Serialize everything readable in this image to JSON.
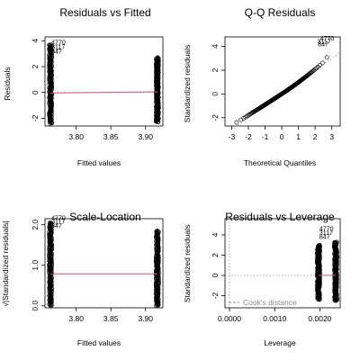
{
  "chart_data": [
    {
      "type": "scatter",
      "title": "Residuals vs Fitted",
      "xlabel": "Fitted values",
      "ylabel": "Residuals",
      "xlim": [
        3.755,
        3.925
      ],
      "ylim": [
        -2.6,
        4.3
      ],
      "xticks": [
        3.8,
        3.85,
        3.9
      ],
      "xtick_labels": [
        "3.80",
        "3.85",
        "3.90"
      ],
      "yticks": [
        -2,
        0,
        2,
        4
      ],
      "ytick_labels": [
        "-2",
        "0",
        "2",
        "4"
      ],
      "clusters": [
        {
          "x": 3.763,
          "y_min": -2.4,
          "y_max": 3.7
        },
        {
          "x": 3.917,
          "y_min": -2.3,
          "y_max": 2.7
        }
      ],
      "reference_line": {
        "type": "hline",
        "y": 0
      },
      "smooth_line": {
        "x": [
          3.763,
          3.917
        ],
        "y": [
          -0.05,
          0.05
        ],
        "color": "#df536b"
      },
      "point_labels": [
        {
          "text": "4770",
          "x": 3.763,
          "y": 3.7
        },
        {
          "text": "3117",
          "x": 3.763,
          "y": 3.35
        },
        {
          "text": "847",
          "x": 3.763,
          "y": 3.0
        }
      ]
    },
    {
      "type": "scatter",
      "title": "Q-Q Residuals",
      "xlabel": "Theoretical Quantiles",
      "ylabel": "Standardized residuals",
      "xlim": [
        -3.4,
        3.5
      ],
      "ylim": [
        -2.7,
        4.8
      ],
      "xticks": [
        -3,
        -2,
        -1,
        0,
        1,
        2,
        3
      ],
      "xtick_labels": [
        "-3",
        "-2",
        "-1",
        "0",
        "1",
        "2",
        "3"
      ],
      "yticks": [
        -2,
        0,
        2,
        4
      ],
      "ytick_labels": [
        "-2",
        "0",
        "2",
        "4"
      ],
      "qq_reference_line": {
        "intercept": 0,
        "slope": 1
      },
      "point_labels": [
        {
          "text": "4770",
          "x": 3.2,
          "y": 4.5
        },
        {
          "text": "3117",
          "x": 3.0,
          "y": 4.25
        },
        {
          "text": "847",
          "x": 2.85,
          "y": 4.0
        }
      ]
    },
    {
      "type": "scatter",
      "title": "Scale-Location",
      "xlabel": "Fitted values",
      "ylabel": "√|Standardized residuals|",
      "xlim": [
        3.755,
        3.925
      ],
      "ylim": [
        -0.05,
        2.15
      ],
      "xticks": [
        3.8,
        3.85,
        3.9
      ],
      "xtick_labels": [
        "3.80",
        "3.85",
        "3.90"
      ],
      "yticks": [
        0.0,
        1.0,
        2.0
      ],
      "ytick_labels": [
        "0.0",
        "1.0",
        "2.0"
      ],
      "clusters": [
        {
          "x": 3.763,
          "y_min": 0.0,
          "y_max": 2.05
        },
        {
          "x": 3.917,
          "y_min": 0.0,
          "y_max": 1.85
        }
      ],
      "smooth_line": {
        "x": [
          3.763,
          3.917
        ],
        "y": [
          0.79,
          0.79
        ],
        "color": "#df536b"
      },
      "point_labels": [
        {
          "text": "4770",
          "x": 3.763,
          "y": 2.12
        },
        {
          "text": "3117",
          "x": 3.763,
          "y": 2.03
        },
        {
          "text": "847",
          "x": 3.763,
          "y": 1.93
        }
      ]
    },
    {
      "type": "scatter",
      "title": "Residuals vs Leverage",
      "xlabel": "Leverage",
      "ylabel": "Standardized residuals",
      "xlim": [
        -0.0001,
        0.00245
      ],
      "ylim": [
        -3.2,
        5.6
      ],
      "xticks": [
        0.0,
        0.001,
        0.002
      ],
      "xtick_labels": [
        "0.0000",
        "0.0010",
        "0.0020"
      ],
      "yticks": [
        -2,
        0,
        2,
        4
      ],
      "ytick_labels": [
        "-2",
        "0",
        "2",
        "4"
      ],
      "clusters": [
        {
          "x": 0.00197,
          "y_min": -2.4,
          "y_max": 3.0
        },
        {
          "x": 0.00235,
          "y_min": -2.5,
          "y_max": 3.3
        }
      ],
      "reference_lines": [
        {
          "type": "hline",
          "y": 0
        },
        {
          "type": "vline",
          "x": 0
        }
      ],
      "smooth_line": {
        "x": [
          0.00197,
          0.00235
        ],
        "y": [
          0.0,
          0.0
        ],
        "color": "#df536b"
      },
      "point_labels": [
        {
          "text": "4770",
          "x": 0.00197,
          "y": 4.4
        },
        {
          "text": "3117",
          "x": 0.00197,
          "y": 4.0
        },
        {
          "text": "847",
          "x": 0.00197,
          "y": 3.6
        }
      ],
      "legend": {
        "text": "Cook's distance",
        "placement": "bottom-left",
        "line_style": "dashed"
      }
    }
  ]
}
